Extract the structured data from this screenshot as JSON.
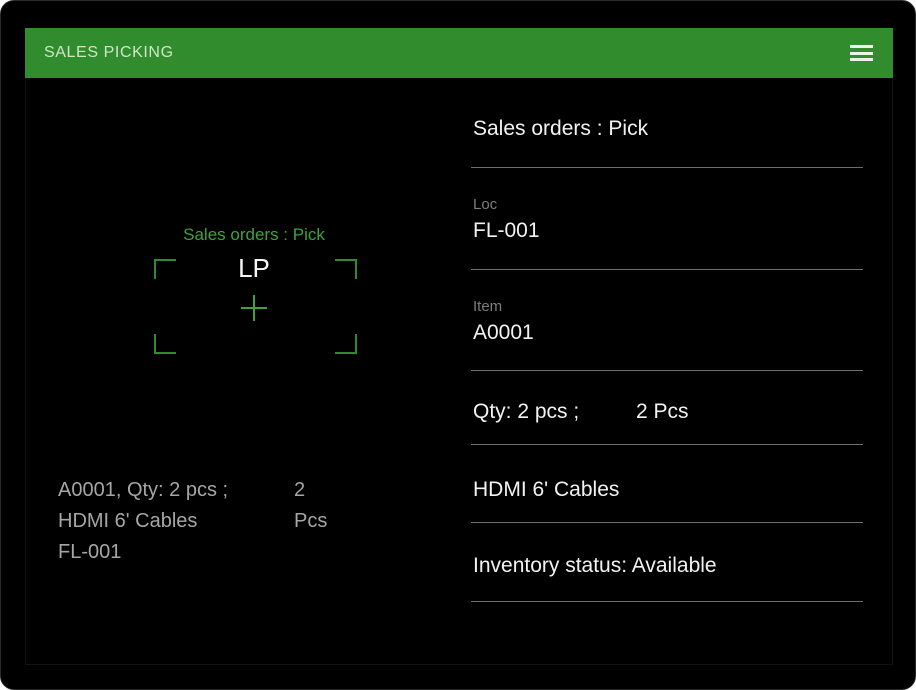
{
  "colors": {
    "header_green": "#318c2d",
    "accent_green": "#3fa23c",
    "background": "#000000"
  },
  "header": {
    "title": "SALES PICKING"
  },
  "scanner": {
    "mode_label": "Sales orders : Pick",
    "field_code": "LP",
    "result_line1_left": "A0001, Qty: 2 pcs ;",
    "result_line1_right": "2 Pcs",
    "result_line2": "HDMI 6' Cables",
    "result_line3": "FL-001"
  },
  "details": {
    "title": "Sales orders : Pick",
    "loc_label": "Loc",
    "loc_value": "FL-001",
    "item_label": "Item",
    "item_value": "A0001",
    "qty_left": "Qty: 2 pcs ;",
    "qty_right": "2 Pcs",
    "product": "HDMI 6' Cables",
    "inventory_status": "Inventory status: Available"
  }
}
